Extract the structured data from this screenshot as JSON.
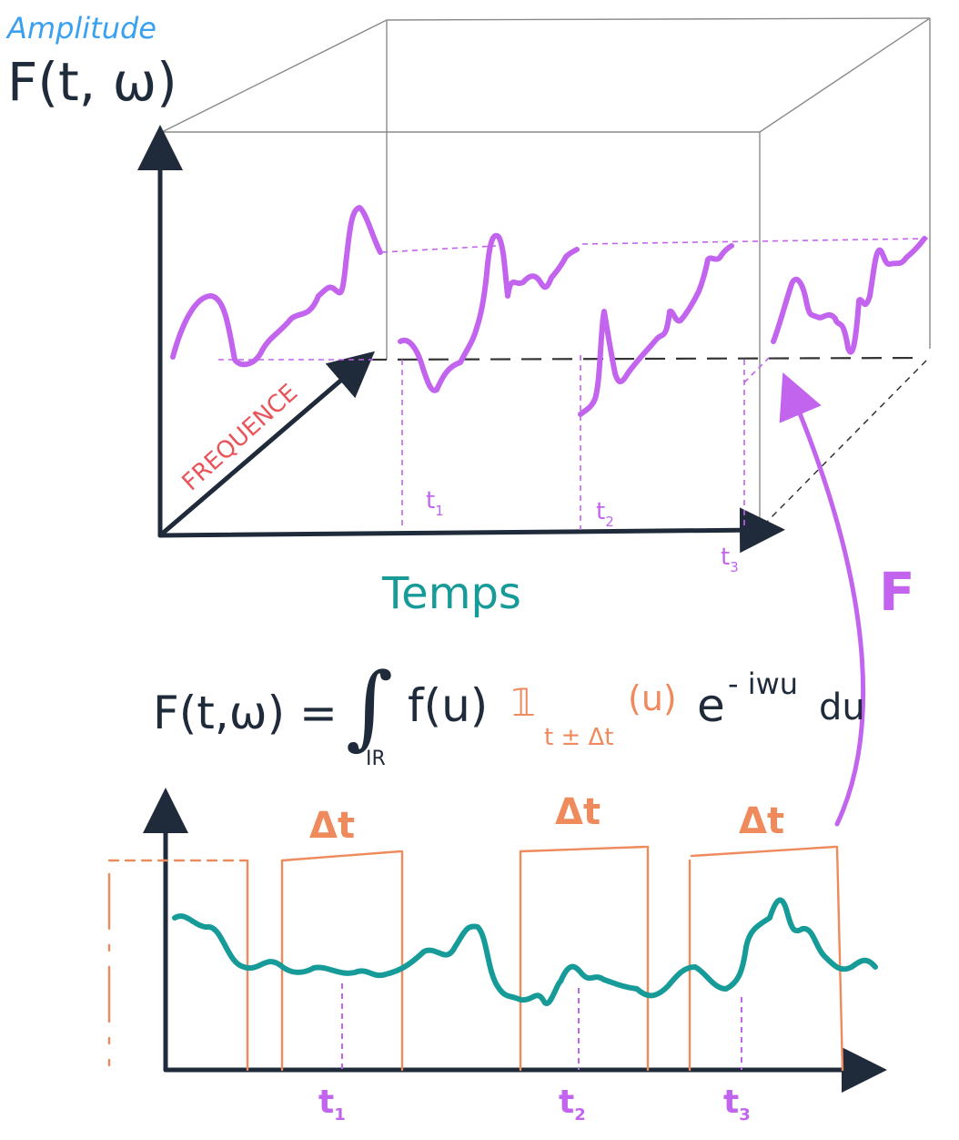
{
  "colors": {
    "ink": "#1f2b3a",
    "blue": "#3aa0f0",
    "purple": "#c264ee",
    "teal": "#169b99",
    "orange": "#ee8a5c",
    "red": "#e8545a",
    "grey": "#8a8a8a"
  },
  "top": {
    "amplitude_label": "Amplitude",
    "f_label": "F(t, ω)",
    "frequence_label": "FREQUENCE",
    "temps_label": "Temps",
    "t1": "t",
    "t1_sub": "1",
    "t2": "t",
    "t2_sub": "2",
    "t3": "t",
    "t3_sub": "3",
    "transform_symbol": "F"
  },
  "formula": {
    "lhs": "F(t,ω) = ",
    "integral": "∫",
    "domain": "IR",
    "fu": "f(u)",
    "indicator": "𝟙",
    "indicator_sub": "t ± Δt",
    "indicator_arg": "(u)",
    "exp_base": "e",
    "exp_power": "- iwu",
    "du": "du"
  },
  "bottom": {
    "dt1": "Δt",
    "dt2": "Δt",
    "dt3": "Δt",
    "t1": "t",
    "t1_sub": "1",
    "t2": "t",
    "t2_sub": "2",
    "t3": "t",
    "t3_sub": "3"
  }
}
